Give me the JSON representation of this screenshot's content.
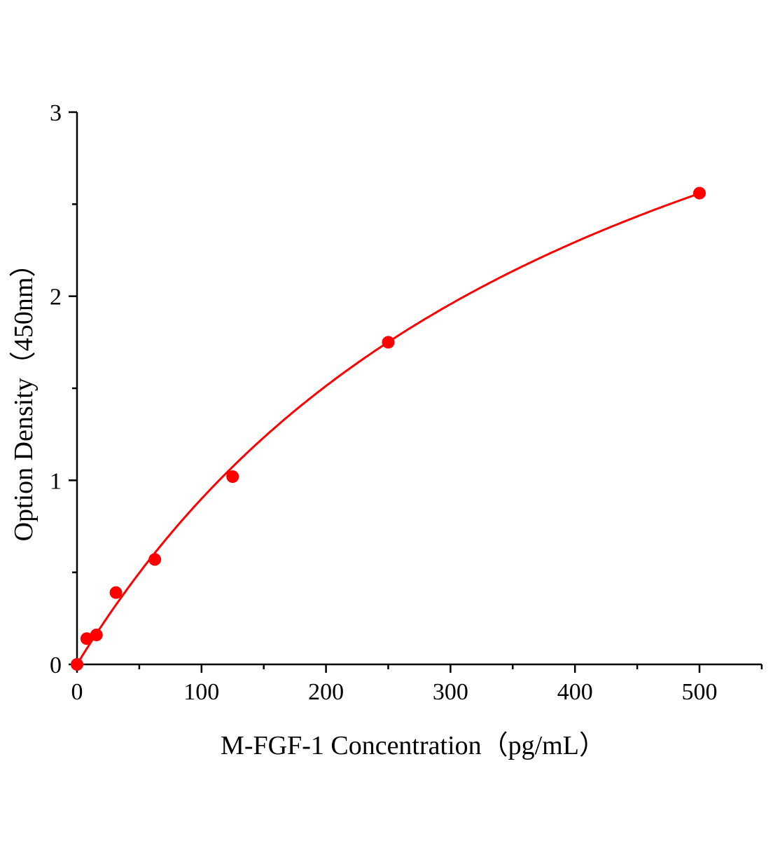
{
  "chart_data": {
    "type": "scatter",
    "title": "",
    "xlabel": "M-FGF-1 Concentration（pg/mL）",
    "ylabel": "Option Density（450nm）",
    "xlim": [
      0,
      550
    ],
    "ylim": [
      0,
      3
    ],
    "x_ticks": [
      "0",
      "100",
      "200",
      "300",
      "400",
      "500"
    ],
    "y_ticks": [
      "0",
      "1",
      "2",
      "3"
    ],
    "grid": false,
    "legend": "none",
    "series": [
      {
        "x": [
          0,
          7.8,
          15.6,
          31.25,
          62.5,
          125,
          250,
          500
        ],
        "y": [
          0.0,
          0.14,
          0.16,
          0.39,
          0.57,
          1.02,
          1.75,
          2.56
        ],
        "color": "#ff0000",
        "fit_curve": true
      }
    ]
  }
}
